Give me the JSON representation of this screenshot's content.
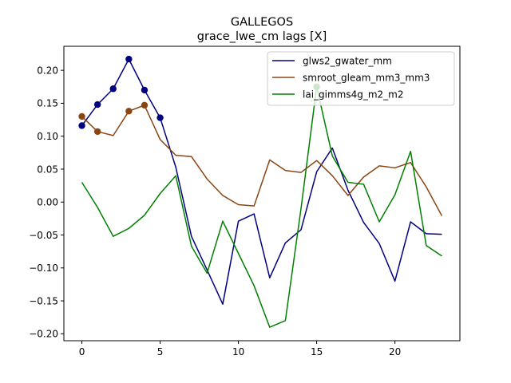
{
  "chart_data": {
    "type": "line",
    "title": "GALLEGOS",
    "subtitle": "grace_lwe_cm lags [X]",
    "xlabel": "",
    "ylabel": "",
    "xlim": [
      -1.15,
      24.15
    ],
    "ylim": [
      -0.2105,
      0.2365
    ],
    "xticks": [
      0,
      5,
      10,
      15,
      20
    ],
    "yticks": [
      -0.2,
      -0.15,
      -0.1,
      -0.05,
      0.0,
      0.05,
      0.1,
      0.15,
      0.2
    ],
    "ytick_labels": [
      "−0.20",
      "−0.15",
      "−0.10",
      "−0.05",
      "0.00",
      "0.05",
      "0.10",
      "0.15",
      "0.20"
    ],
    "legend_position": "top-right",
    "x": [
      0,
      1,
      2,
      3,
      4,
      5,
      6,
      7,
      8,
      9,
      10,
      11,
      12,
      13,
      14,
      15,
      16,
      17,
      18,
      19,
      20,
      21,
      22,
      23
    ],
    "series": [
      {
        "name": "glws2_gwater_mm",
        "color": "#000080",
        "values": [
          0.116,
          0.148,
          0.172,
          0.217,
          0.17,
          0.128,
          0.053,
          -0.052,
          -0.103,
          -0.155,
          -0.029,
          -0.018,
          -0.115,
          -0.062,
          -0.042,
          0.046,
          0.082,
          0.018,
          -0.031,
          -0.063,
          -0.12,
          -0.03,
          -0.048,
          -0.049
        ],
        "markers": [
          0,
          1,
          2,
          3,
          4,
          5
        ]
      },
      {
        "name": "smroot_gleam_mm3_mm3",
        "color": "#8b4513",
        "values": [
          0.13,
          0.107,
          0.101,
          0.138,
          0.147,
          0.095,
          0.071,
          0.069,
          0.035,
          0.01,
          -0.004,
          -0.006,
          0.064,
          0.048,
          0.045,
          0.063,
          0.04,
          0.01,
          0.038,
          0.055,
          0.052,
          0.06,
          0.023,
          -0.021
        ],
        "markers": [
          0,
          1,
          3,
          4
        ]
      },
      {
        "name": "lai_gimms4g_m2_m2",
        "color": "#008000",
        "values": [
          0.03,
          -0.008,
          -0.052,
          -0.04,
          -0.02,
          0.013,
          0.04,
          -0.067,
          -0.108,
          -0.029,
          -0.078,
          -0.127,
          -0.19,
          -0.18,
          -0.01,
          0.175,
          0.07,
          0.03,
          0.027,
          -0.03,
          0.011,
          0.077,
          -0.066,
          -0.082
        ],
        "markers": [
          15
        ]
      }
    ]
  }
}
